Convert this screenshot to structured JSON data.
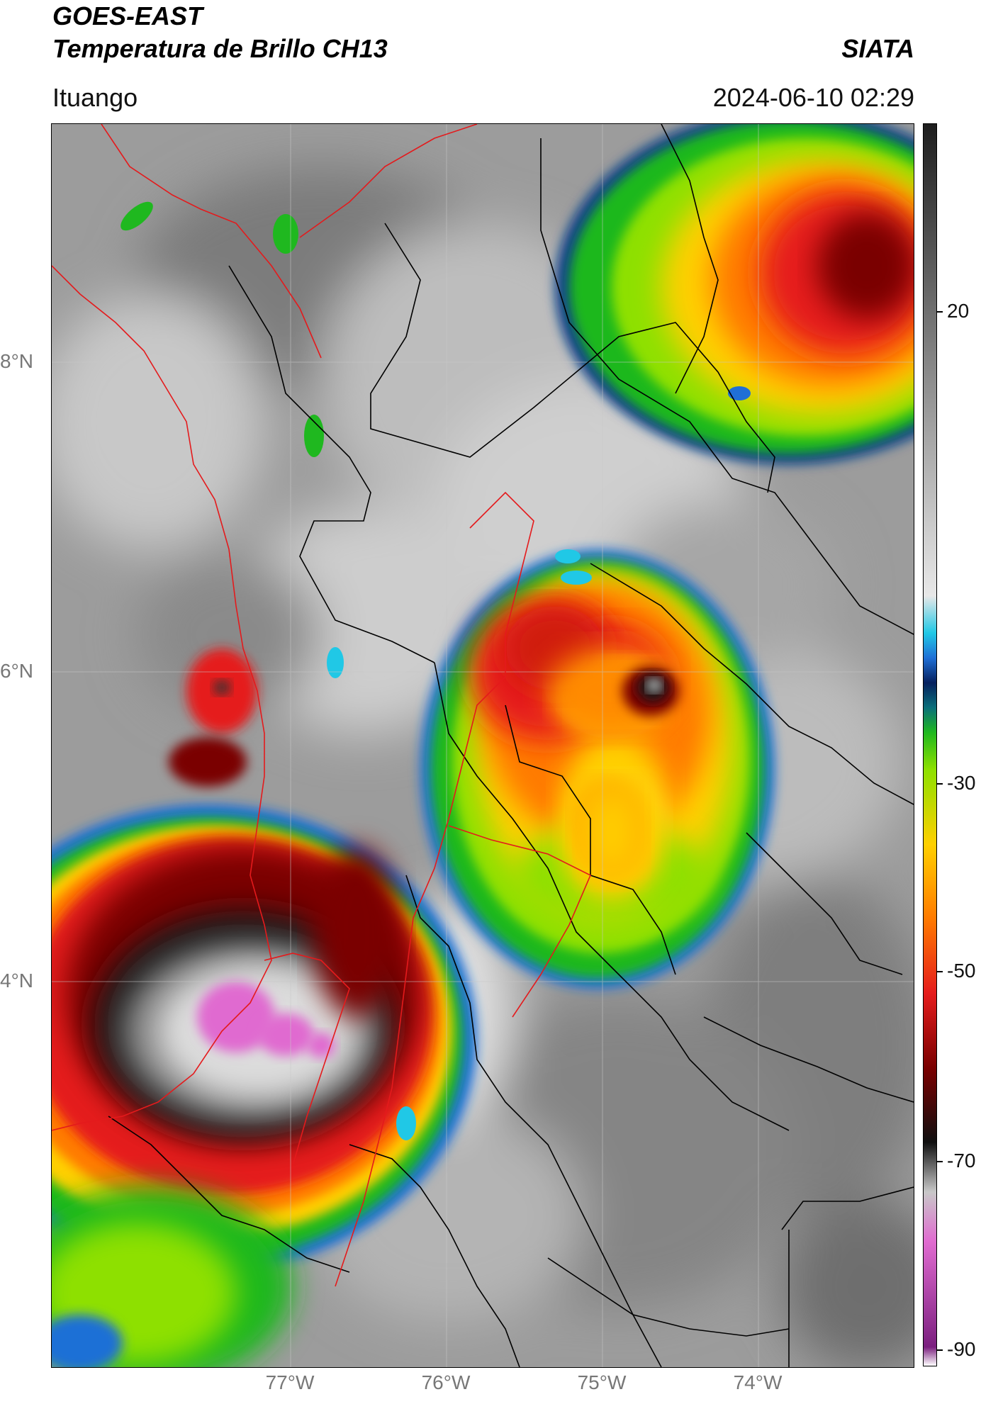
{
  "header": {
    "title_line1": "GOES-EAST",
    "title_line2": "Temperatura de Brillo CH13",
    "brand": "SIATA",
    "location": "Ituango",
    "timestamp": "2024-06-10 02:29"
  },
  "map": {
    "lat_labels": [
      "8°N",
      "6°N",
      "4°N"
    ],
    "lon_labels": [
      "77°W",
      "76°W",
      "75°W",
      "74°W"
    ],
    "colors": {
      "coast_line": "#e41a1c",
      "admin_line": "#000000",
      "gridline": "#c8c8c8"
    }
  },
  "colorbar": {
    "ticks": [
      "20",
      "-30",
      "-50",
      "-70",
      "-90"
    ],
    "palette": [
      "#ffffff",
      "#7b1f7f",
      "#e06bd0",
      "#c8c8c8",
      "#101010",
      "#7a0000",
      "#e51c1c",
      "#ff7a00",
      "#ffd000",
      "#8ee000",
      "#1fb81f",
      "#0a6f7a",
      "#06205e",
      "#1f6fd6",
      "#20c8e6",
      "#e8e8e8",
      "#8a8a8a",
      "#1e1e1e"
    ]
  }
}
